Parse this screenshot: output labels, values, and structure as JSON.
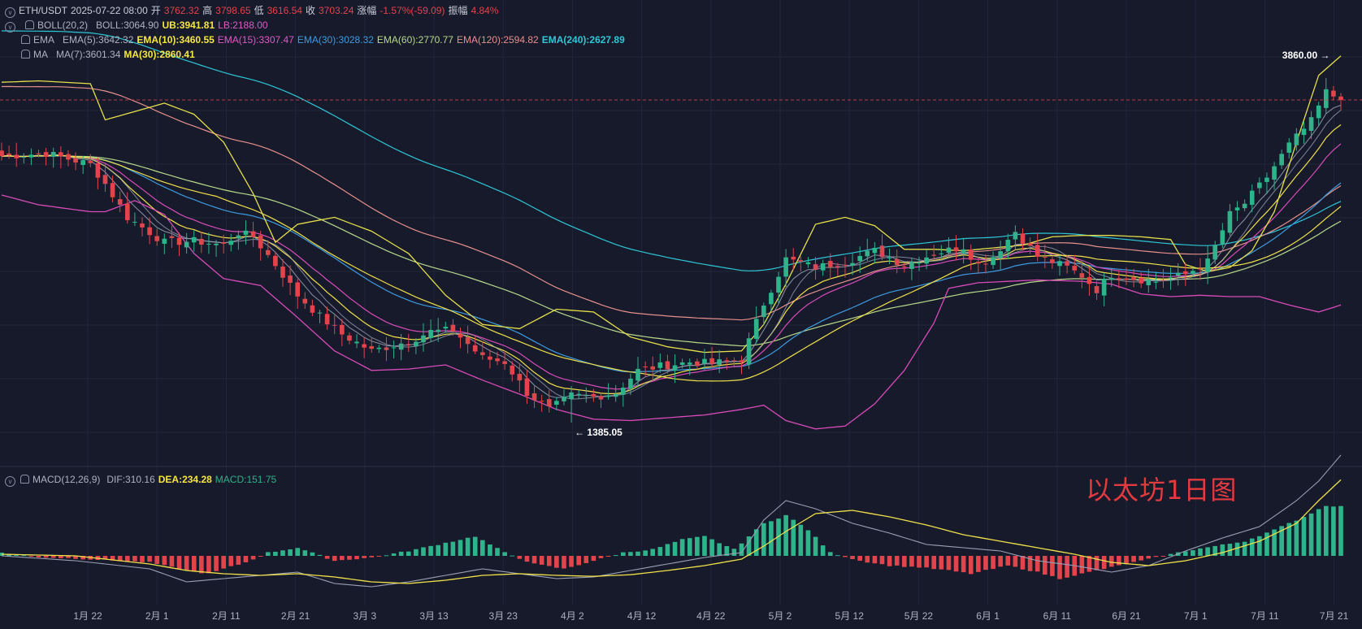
{
  "header": {
    "symbol": "ETH/USDT",
    "datetime": "2025-07-22 08:00",
    "open_label": "开",
    "open": "3762.32",
    "high_label": "高",
    "high": "3798.65",
    "low_label": "低",
    "low": "3616.54",
    "close_label": "收",
    "close": "3703.24",
    "change_label": "涨幅",
    "change": "-1.57%(-59.09)",
    "amp_label": "振幅",
    "amp": "4.84%"
  },
  "indicators": {
    "boll": {
      "name": "BOLL(20,2)",
      "mid": "BOLL:3064.90",
      "ub": "UB:3941.81",
      "lb": "LB:2188.00"
    },
    "ema": {
      "name": "EMA",
      "e5": "EMA(5):3642.32",
      "e10": "EMA(10):3460.55",
      "e15": "EMA(15):3307.47",
      "e30": "EMA(30):3028.32",
      "e60": "EMA(60):2770.77",
      "e120": "EMA(120):2594.82",
      "e240": "EMA(240):2627.89"
    },
    "ma": {
      "name": "MA",
      "m7": "MA(7):3601.34",
      "m30": "MA(30):2860.41"
    },
    "macd": {
      "name": "MACD(12,26,9)",
      "dif": "DIF:310.16",
      "dea": "DEA:234.28",
      "macd": "MACD:151.75"
    }
  },
  "watermark": "以太坊1日图",
  "colors": {
    "up": "#2fb38a",
    "down": "#e2444b",
    "boll": "#e6e04a",
    "boll_lb": "#d94bb8",
    "ema5": "#9aa0b4",
    "ema10": "#f0e14a",
    "ema15": "#d94bb8",
    "ema30": "#3d9be0",
    "ema60": "#b9d98a",
    "ema120": "#e7908c",
    "ema240": "#2ec7d6",
    "ma7": "#9aa0b4",
    "ma30": "#f0e14a"
  },
  "chart_data": {
    "type": "candlestick",
    "price_range": [
      1000,
      4100
    ],
    "x_ticks": [
      "1月 22",
      "2月 1",
      "2月 11",
      "2月 21",
      "3月 3",
      "3月 13",
      "3月 23",
      "4月 2",
      "4月 12",
      "4月 22",
      "5月 2",
      "5月 12",
      "5月 22",
      "6月 1",
      "6月 11",
      "6月 21",
      "7月 1",
      "7月 11",
      "7月 21"
    ],
    "annotations": {
      "high": "3860.00",
      "low": "1385.05"
    },
    "current_price": 3703.24,
    "close_path": [
      [
        0,
        3300
      ],
      [
        6,
        3320
      ],
      [
        12,
        3240
      ],
      [
        14,
        3100
      ],
      [
        17,
        2860
      ],
      [
        22,
        2680
      ],
      [
        26,
        2690
      ],
      [
        30,
        2660
      ],
      [
        32,
        2750
      ],
      [
        34,
        2720
      ],
      [
        37,
        2520
      ],
      [
        40,
        2300
      ],
      [
        43,
        2150
      ],
      [
        46,
        2020
      ],
      [
        50,
        1900
      ],
      [
        55,
        1970
      ],
      [
        58,
        2040
      ],
      [
        61,
        2050
      ],
      [
        65,
        1850
      ],
      [
        68,
        1820
      ],
      [
        71,
        1600
      ],
      [
        74,
        1480
      ],
      [
        77,
        1580
      ],
      [
        80,
        1570
      ],
      [
        83,
        1600
      ],
      [
        86,
        1760
      ],
      [
        89,
        1790
      ],
      [
        93,
        1820
      ],
      [
        96,
        1810
      ],
      [
        100,
        1840
      ],
      [
        103,
        2240
      ],
      [
        106,
        2560
      ],
      [
        110,
        2500
      ],
      [
        114,
        2540
      ],
      [
        118,
        2620
      ],
      [
        122,
        2520
      ],
      [
        126,
        2600
      ],
      [
        130,
        2650
      ],
      [
        132,
        2520
      ],
      [
        134,
        2580
      ],
      [
        137,
        2760
      ],
      [
        140,
        2580
      ],
      [
        144,
        2500
      ],
      [
        146,
        2440
      ],
      [
        148,
        2340
      ],
      [
        150,
        2450
      ],
      [
        153,
        2420
      ],
      [
        156,
        2400
      ],
      [
        160,
        2450
      ],
      [
        163,
        2540
      ],
      [
        166,
        2880
      ],
      [
        168,
        2960
      ],
      [
        171,
        3150
      ],
      [
        174,
        3380
      ],
      [
        177,
        3550
      ],
      [
        179,
        3760
      ],
      [
        181,
        3703
      ]
    ],
    "boll_upper_path": [
      [
        0,
        3830
      ],
      [
        5,
        3840
      ],
      [
        12,
        3820
      ],
      [
        14,
        3560
      ],
      [
        18,
        3620
      ],
      [
        22,
        3680
      ],
      [
        26,
        3600
      ],
      [
        30,
        3400
      ],
      [
        34,
        3030
      ],
      [
        37,
        2680
      ],
      [
        40,
        2810
      ],
      [
        45,
        2860
      ],
      [
        50,
        2760
      ],
      [
        55,
        2600
      ],
      [
        60,
        2300
      ],
      [
        65,
        2090
      ],
      [
        70,
        2060
      ],
      [
        75,
        2200
      ],
      [
        80,
        2180
      ],
      [
        85,
        2000
      ],
      [
        90,
        1930
      ],
      [
        95,
        1890
      ],
      [
        100,
        1900
      ],
      [
        103,
        2090
      ],
      [
        106,
        2380
      ],
      [
        110,
        2810
      ],
      [
        114,
        2860
      ],
      [
        118,
        2800
      ],
      [
        122,
        2630
      ],
      [
        126,
        2630
      ],
      [
        130,
        2620
      ],
      [
        134,
        2640
      ],
      [
        138,
        2660
      ],
      [
        142,
        2720
      ],
      [
        146,
        2730
      ],
      [
        150,
        2730
      ],
      [
        154,
        2720
      ],
      [
        158,
        2700
      ],
      [
        160,
        2520
      ],
      [
        163,
        2470
      ],
      [
        166,
        2500
      ],
      [
        169,
        2620
      ],
      [
        172,
        2900
      ],
      [
        175,
        3400
      ],
      [
        178,
        3880
      ],
      [
        181,
        4020
      ]
    ],
    "boll_lower_path": [
      [
        0,
        3020
      ],
      [
        5,
        2950
      ],
      [
        12,
        2900
      ],
      [
        14,
        2900
      ],
      [
        18,
        2980
      ],
      [
        22,
        2880
      ],
      [
        26,
        2600
      ],
      [
        30,
        2420
      ],
      [
        35,
        2370
      ],
      [
        40,
        2140
      ],
      [
        45,
        1900
      ],
      [
        50,
        1760
      ],
      [
        55,
        1770
      ],
      [
        60,
        1800
      ],
      [
        65,
        1690
      ],
      [
        70,
        1590
      ],
      [
        75,
        1480
      ],
      [
        80,
        1410
      ],
      [
        85,
        1400
      ],
      [
        90,
        1420
      ],
      [
        95,
        1440
      ],
      [
        100,
        1480
      ],
      [
        103,
        1510
      ],
      [
        106,
        1400
      ],
      [
        110,
        1340
      ],
      [
        114,
        1360
      ],
      [
        118,
        1520
      ],
      [
        122,
        1760
      ],
      [
        126,
        2100
      ],
      [
        128,
        2350
      ],
      [
        132,
        2390
      ],
      [
        136,
        2400
      ],
      [
        140,
        2410
      ],
      [
        146,
        2400
      ],
      [
        150,
        2380
      ],
      [
        154,
        2310
      ],
      [
        158,
        2290
      ],
      [
        162,
        2300
      ],
      [
        166,
        2290
      ],
      [
        170,
        2290
      ],
      [
        174,
        2230
      ],
      [
        178,
        2180
      ],
      [
        181,
        2230
      ]
    ],
    "macd_hist": [
      [
        0,
        10
      ],
      [
        5,
        -4
      ],
      [
        10,
        -8
      ],
      [
        15,
        -14
      ],
      [
        20,
        -20
      ],
      [
        25,
        -45
      ],
      [
        28,
        -55
      ],
      [
        30,
        -40
      ],
      [
        33,
        -20
      ],
      [
        36,
        10
      ],
      [
        40,
        25
      ],
      [
        45,
        -15
      ],
      [
        50,
        -5
      ],
      [
        55,
        15
      ],
      [
        60,
        40
      ],
      [
        64,
        60
      ],
      [
        68,
        10
      ],
      [
        72,
        -25
      ],
      [
        76,
        -40
      ],
      [
        80,
        -15
      ],
      [
        84,
        10
      ],
      [
        88,
        20
      ],
      [
        92,
        50
      ],
      [
        95,
        60
      ],
      [
        99,
        20
      ],
      [
        103,
        100
      ],
      [
        106,
        125
      ],
      [
        109,
        80
      ],
      [
        112,
        10
      ],
      [
        116,
        -15
      ],
      [
        120,
        -30
      ],
      [
        124,
        -35
      ],
      [
        128,
        -45
      ],
      [
        131,
        -55
      ],
      [
        133,
        -45
      ],
      [
        136,
        -30
      ],
      [
        140,
        -50
      ],
      [
        143,
        -70
      ],
      [
        146,
        -55
      ],
      [
        149,
        -40
      ],
      [
        153,
        -20
      ],
      [
        156,
        -5
      ],
      [
        160,
        15
      ],
      [
        164,
        30
      ],
      [
        168,
        45
      ],
      [
        172,
        80
      ],
      [
        176,
        120
      ],
      [
        179,
        155
      ],
      [
        181,
        152
      ]
    ],
    "dif_path": [
      [
        0,
        0
      ],
      [
        10,
        -15
      ],
      [
        20,
        -40
      ],
      [
        25,
        -80
      ],
      [
        30,
        -70
      ],
      [
        35,
        -60
      ],
      [
        40,
        -50
      ],
      [
        45,
        -85
      ],
      [
        50,
        -95
      ],
      [
        55,
        -80
      ],
      [
        60,
        -60
      ],
      [
        65,
        -40
      ],
      [
        70,
        -55
      ],
      [
        75,
        -70
      ],
      [
        80,
        -65
      ],
      [
        85,
        -45
      ],
      [
        90,
        -25
      ],
      [
        95,
        -5
      ],
      [
        100,
        10
      ],
      [
        103,
        110
      ],
      [
        106,
        170
      ],
      [
        110,
        145
      ],
      [
        115,
        100
      ],
      [
        120,
        70
      ],
      [
        125,
        35
      ],
      [
        130,
        25
      ],
      [
        135,
        15
      ],
      [
        140,
        -15
      ],
      [
        145,
        -30
      ],
      [
        150,
        -50
      ],
      [
        155,
        -30
      ],
      [
        160,
        15
      ],
      [
        165,
        55
      ],
      [
        170,
        90
      ],
      [
        175,
        170
      ],
      [
        178,
        230
      ],
      [
        181,
        310
      ]
    ],
    "dea_path": [
      [
        0,
        5
      ],
      [
        10,
        0
      ],
      [
        20,
        -25
      ],
      [
        25,
        -45
      ],
      [
        30,
        -55
      ],
      [
        35,
        -60
      ],
      [
        40,
        -55
      ],
      [
        45,
        -65
      ],
      [
        50,
        -80
      ],
      [
        55,
        -85
      ],
      [
        60,
        -75
      ],
      [
        65,
        -60
      ],
      [
        70,
        -55
      ],
      [
        75,
        -60
      ],
      [
        80,
        -63
      ],
      [
        85,
        -58
      ],
      [
        90,
        -45
      ],
      [
        95,
        -30
      ],
      [
        100,
        -10
      ],
      [
        103,
        30
      ],
      [
        106,
        75
      ],
      [
        110,
        130
      ],
      [
        115,
        140
      ],
      [
        120,
        120
      ],
      [
        125,
        95
      ],
      [
        130,
        65
      ],
      [
        135,
        45
      ],
      [
        140,
        25
      ],
      [
        145,
        5
      ],
      [
        150,
        -20
      ],
      [
        155,
        -30
      ],
      [
        160,
        -15
      ],
      [
        165,
        10
      ],
      [
        170,
        45
      ],
      [
        175,
        100
      ],
      [
        178,
        170
      ],
      [
        181,
        234
      ]
    ]
  }
}
